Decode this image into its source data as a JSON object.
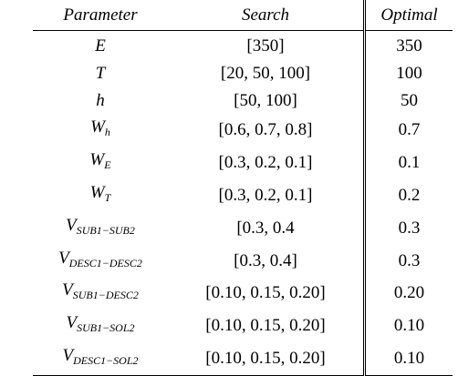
{
  "headers": {
    "parameter": "Parameter",
    "search": "Search",
    "optimal": "Optimal"
  },
  "rows": [
    {
      "symbol": "E",
      "sub": "",
      "search": "[350]",
      "optimal": "350"
    },
    {
      "symbol": "T",
      "sub": "",
      "search": "[20, 50, 100]",
      "optimal": "100"
    },
    {
      "symbol": "h",
      "sub": "",
      "search": "[50, 100]",
      "optimal": "50"
    },
    {
      "symbol": "W",
      "sub": "h",
      "search": "[0.6, 0.7, 0.8]",
      "optimal": "0.7"
    },
    {
      "symbol": "W",
      "sub": "E",
      "search": "[0.3, 0.2, 0.1]",
      "optimal": "0.1"
    },
    {
      "symbol": "W",
      "sub": "T",
      "search": "[0.3, 0.2, 0.1]",
      "optimal": "0.2"
    },
    {
      "symbol": "V",
      "sub": "SUB1−SUB2",
      "search": "[0.3, 0.4",
      "optimal": "0.3"
    },
    {
      "symbol": "V",
      "sub": "DESC1−DESC2",
      "search": "[0.3, 0.4]",
      "optimal": "0.3"
    },
    {
      "symbol": "V",
      "sub": "SUB1−DESC2",
      "search": "[0.10, 0.15, 0.20]",
      "optimal": "0.20"
    },
    {
      "symbol": "V",
      "sub": "SUB1−SOL2",
      "search": "[0.10, 0.15, 0.20]",
      "optimal": "0.10"
    },
    {
      "symbol": "V",
      "sub": "DESC1−SOL2",
      "search": "[0.10, 0.15, 0.20]",
      "optimal": "0.10"
    }
  ]
}
